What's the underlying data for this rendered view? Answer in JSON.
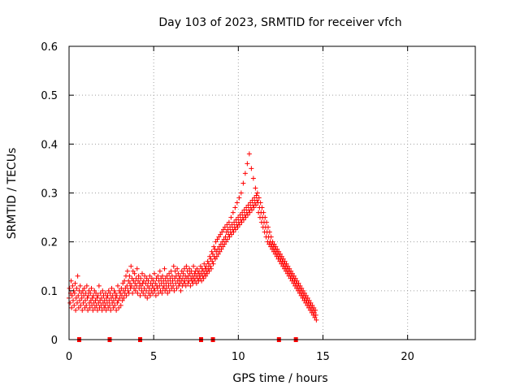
{
  "chart_data": {
    "type": "scatter",
    "title": "Day 103 of 2023, SRMTID for receiver vfch",
    "xlabel": "GPS time / hours",
    "ylabel": "SRMTID / TECUs",
    "xlim": [
      0,
      24
    ],
    "ylim": [
      0,
      0.6
    ],
    "xticks": [
      0,
      5,
      10,
      15,
      20
    ],
    "xtick_labels": [
      "0",
      "5",
      "10",
      "15",
      "20"
    ],
    "yticks": [
      0,
      0.1,
      0.2,
      0.3,
      0.4,
      0.5,
      0.6
    ],
    "ytick_labels": [
      "0",
      "0.1",
      "0.2",
      "0.3",
      "0.4",
      "0.5",
      "0.6"
    ],
    "grid": true,
    "marker": "plus",
    "color": "#ff0000",
    "sample_interval_hours": 0.03,
    "series": [
      {
        "name": "SRMTID",
        "x_start": 0.0,
        "x_step": 0.03,
        "values": [
          0.085,
          0.105,
          0.075,
          0.095,
          0.12,
          0.065,
          0.09,
          0.11,
          0.08,
          0.1,
          0.07,
          0.095,
          0.115,
          0.06,
          0.085,
          0.105,
          0.075,
          0.13,
          0.09,
          0.065,
          0.1,
          0.08,
          0.11,
          0.07,
          0.095,
          0.085,
          0.06,
          0.1,
          0.075,
          0.09,
          0.105,
          0.065,
          0.08,
          0.095,
          0.07,
          0.11,
          0.085,
          0.06,
          0.09,
          0.1,
          0.075,
          0.065,
          0.095,
          0.08,
          0.105,
          0.07,
          0.085,
          0.06,
          0.09,
          0.075,
          0.1,
          0.065,
          0.08,
          0.095,
          0.07,
          0.085,
          0.06,
          0.09,
          0.075,
          0.11,
          0.065,
          0.08,
          0.095,
          0.07,
          0.085,
          0.06,
          0.1,
          0.075,
          0.09,
          0.065,
          0.08,
          0.07,
          0.095,
          0.06,
          0.085,
          0.075,
          0.09,
          0.065,
          0.1,
          0.08,
          0.07,
          0.095,
          0.06,
          0.085,
          0.105,
          0.075,
          0.09,
          0.065,
          0.08,
          0.1,
          0.07,
          0.095,
          0.085,
          0.06,
          0.09,
          0.075,
          0.11,
          0.08,
          0.065,
          0.1,
          0.085,
          0.095,
          0.07,
          0.105,
          0.09,
          0.08,
          0.115,
          0.1,
          0.085,
          0.12,
          0.095,
          0.105,
          0.13,
          0.09,
          0.11,
          0.14,
          0.1,
          0.12,
          0.095,
          0.13,
          0.115,
          0.105,
          0.15,
          0.11,
          0.125,
          0.095,
          0.14,
          0.12,
          0.105,
          0.135,
          0.115,
          0.1,
          0.125,
          0.11,
          0.145,
          0.095,
          0.12,
          0.13,
          0.105,
          0.115,
          0.09,
          0.125,
          0.11,
          0.1,
          0.135,
          0.115,
          0.095,
          0.12,
          0.105,
          0.13,
          0.09,
          0.115,
          0.1,
          0.125,
          0.085,
          0.11,
          0.12,
          0.095,
          0.105,
          0.13,
          0.09,
          0.115,
          0.1,
          0.125,
          0.11,
          0.095,
          0.12,
          0.105,
          0.135,
          0.1,
          0.115,
          0.09,
          0.125,
          0.11,
          0.105,
          0.13,
          0.095,
          0.12,
          0.11,
          0.14,
          0.1,
          0.125,
          0.115,
          0.095,
          0.13,
          0.105,
          0.12,
          0.11,
          0.145,
          0.1,
          0.125,
          0.115,
          0.105,
          0.13,
          0.095,
          0.12,
          0.11,
          0.135,
          0.1,
          0.125,
          0.115,
          0.14,
          0.105,
          0.13,
          0.12,
          0.11,
          0.15,
          0.1,
          0.125,
          0.14,
          0.115,
          0.13,
          0.105,
          0.145,
          0.12,
          0.135,
          0.11,
          0.125,
          0.115,
          0.13,
          0.1,
          0.12,
          0.14,
          0.11,
          0.125,
          0.135,
          0.115,
          0.145,
          0.12,
          0.13,
          0.11,
          0.15,
          0.125,
          0.14,
          0.115,
          0.13,
          0.12,
          0.145,
          0.135,
          0.11,
          0.125,
          0.14,
          0.12,
          0.13,
          0.115,
          0.15,
          0.125,
          0.135,
          0.12,
          0.14,
          0.13,
          0.115,
          0.145,
          0.125,
          0.135,
          0.12,
          0.14,
          0.13,
          0.125,
          0.15,
          0.135,
          0.12,
          0.145,
          0.13,
          0.14,
          0.125,
          0.155,
          0.135,
          0.145,
          0.13,
          0.15,
          0.14,
          0.135,
          0.16,
          0.145,
          0.155,
          0.14,
          0.17,
          0.15,
          0.165,
          0.145,
          0.18,
          0.16,
          0.175,
          0.155,
          0.19,
          0.17,
          0.185,
          0.165,
          0.2,
          0.18,
          0.17,
          0.205,
          0.185,
          0.175,
          0.21,
          0.19,
          0.18,
          0.215,
          0.195,
          0.185,
          0.22,
          0.2,
          0.19,
          0.225,
          0.205,
          0.195,
          0.23,
          0.21,
          0.2,
          0.22,
          0.235,
          0.205,
          0.225,
          0.215,
          0.24,
          0.21,
          0.23,
          0.22,
          0.25,
          0.215,
          0.235,
          0.225,
          0.26,
          0.22,
          0.24,
          0.23,
          0.27,
          0.225,
          0.245,
          0.235,
          0.28,
          0.23,
          0.25,
          0.24,
          0.29,
          0.235,
          0.255,
          0.245,
          0.3,
          0.24,
          0.26,
          0.25,
          0.32,
          0.245,
          0.265,
          0.255,
          0.34,
          0.25,
          0.27,
          0.26,
          0.36,
          0.255,
          0.275,
          0.265,
          0.38,
          0.26,
          0.28,
          0.27,
          0.35,
          0.265,
          0.285,
          0.275,
          0.33,
          0.27,
          0.29,
          0.28,
          0.31,
          0.275,
          0.295,
          0.285,
          0.3,
          0.28,
          0.26,
          0.29,
          0.27,
          0.25,
          0.28,
          0.26,
          0.24,
          0.27,
          0.25,
          0.23,
          0.26,
          0.24,
          0.22,
          0.25,
          0.23,
          0.21,
          0.24,
          0.22,
          0.2,
          0.23,
          0.21,
          0.195,
          0.22,
          0.2,
          0.19,
          0.21,
          0.195,
          0.185,
          0.2,
          0.19,
          0.18,
          0.195,
          0.185,
          0.175,
          0.19,
          0.18,
          0.17,
          0.185,
          0.175,
          0.165,
          0.18,
          0.17,
          0.16,
          0.175,
          0.165,
          0.155,
          0.17,
          0.16,
          0.15,
          0.165,
          0.155,
          0.145,
          0.16,
          0.15,
          0.14,
          0.155,
          0.145,
          0.135,
          0.15,
          0.14,
          0.13,
          0.145,
          0.135,
          0.125,
          0.14,
          0.13,
          0.12,
          0.135,
          0.125,
          0.115,
          0.13,
          0.12,
          0.11,
          0.125,
          0.115,
          0.105,
          0.12,
          0.11,
          0.1,
          0.115,
          0.105,
          0.095,
          0.11,
          0.1,
          0.09,
          0.105,
          0.095,
          0.085,
          0.1,
          0.09,
          0.08,
          0.095,
          0.085,
          0.075,
          0.09,
          0.08,
          0.07,
          0.085,
          0.075,
          0.065,
          0.08,
          0.07,
          0.06,
          0.075,
          0.065,
          0.055,
          0.07,
          0.06,
          0.05,
          0.065,
          0.055,
          0.045,
          0.06,
          0.05,
          0.04
        ]
      }
    ],
    "gap_markers_x": [
      0.6,
      2.4,
      4.2,
      7.8,
      8.5,
      12.4,
      13.4
    ]
  }
}
